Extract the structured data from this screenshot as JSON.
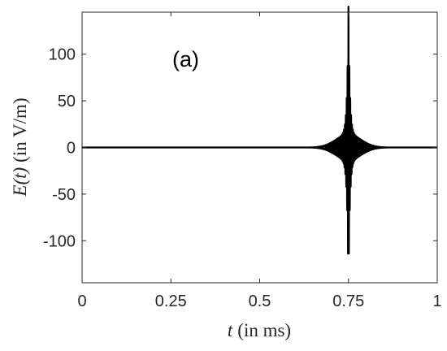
{
  "chart_data": {
    "type": "line",
    "annotation": "(a)",
    "xlabel_var": "t",
    "xlabel_unit": "(in ms)",
    "ylabel_var": "E(t)",
    "ylabel_unit": "(in V/m)",
    "xlim": [
      0,
      1
    ],
    "ylim": [
      -145,
      145
    ],
    "x_ticks": [
      0,
      0.25,
      0.5,
      0.75,
      1
    ],
    "x_tick_labels": [
      "0",
      "0.25",
      "0.5",
      "0.75",
      "1"
    ],
    "y_ticks": [
      -100,
      -50,
      0,
      50,
      100
    ],
    "y_tick_labels": [
      "-100",
      "-50",
      "0",
      "50",
      "100"
    ],
    "grid": false,
    "series_color": "#000000",
    "pulse": {
      "center": 0.75,
      "peak_amplitude": 137,
      "width": 0.004,
      "envelope_amplitude": 14,
      "envelope_width": 0.035,
      "carrier_period": 0.0025
    }
  }
}
